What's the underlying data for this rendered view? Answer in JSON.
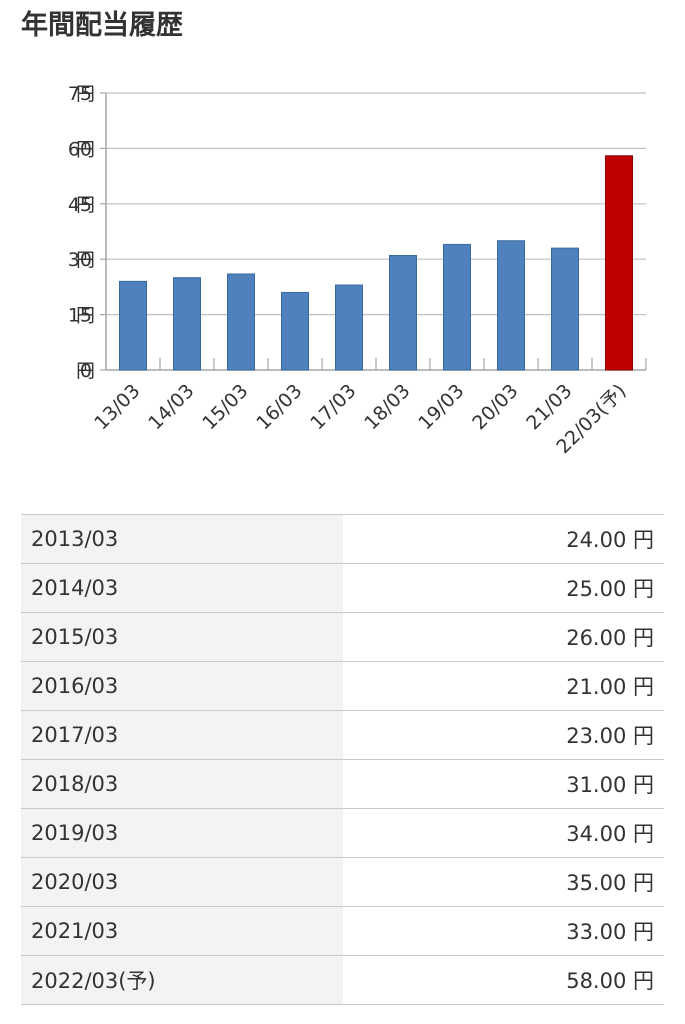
{
  "header": {
    "title": "年間配当履歴"
  },
  "colors": {
    "actual": "#4f81bd",
    "forecast": "#c00000",
    "axis": "#a6a6a6",
    "grid": "#bfbfbf"
  },
  "chart_data": {
    "type": "bar",
    "categories": [
      "13/03",
      "14/03",
      "15/03",
      "16/03",
      "17/03",
      "18/03",
      "19/03",
      "20/03",
      "21/03",
      "22/03(予)"
    ],
    "values": [
      24,
      25,
      26,
      21,
      23,
      31,
      34,
      35,
      33,
      58
    ],
    "forecast": [
      false,
      false,
      false,
      false,
      false,
      false,
      false,
      false,
      false,
      true
    ],
    "ylim": [
      0,
      75
    ],
    "yticks": [
      0,
      15,
      30,
      45,
      60,
      75
    ],
    "unit": "円",
    "grid": true
  },
  "table": {
    "rows": [
      {
        "year": "2013/03",
        "amount": "24.00 円"
      },
      {
        "year": "2014/03",
        "amount": "25.00 円"
      },
      {
        "year": "2015/03",
        "amount": "26.00 円"
      },
      {
        "year": "2016/03",
        "amount": "21.00 円"
      },
      {
        "year": "2017/03",
        "amount": "23.00 円"
      },
      {
        "year": "2018/03",
        "amount": "31.00 円"
      },
      {
        "year": "2019/03",
        "amount": "34.00 円"
      },
      {
        "year": "2020/03",
        "amount": "35.00 円"
      },
      {
        "year": "2021/03",
        "amount": "33.00 円"
      },
      {
        "year": "2022/03(予)",
        "amount": "58.00 円"
      }
    ]
  }
}
